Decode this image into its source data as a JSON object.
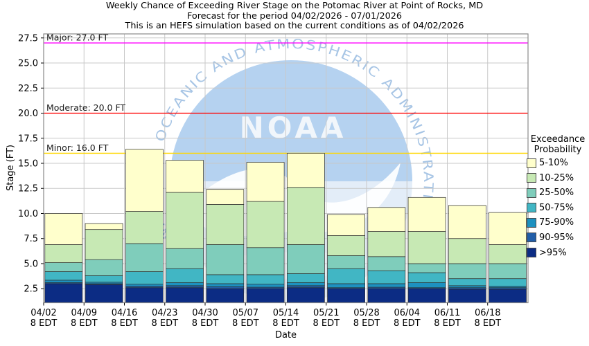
{
  "title": {
    "line1": "Weekly Chance of Exceeding River Stage on the Potomac River at Point of Rocks, MD",
    "line2": "Forecast for the period 04/02/2026 - 07/01/2026",
    "line3": "This is an HEFS simulation based on the current conditions as of 04/02/2026"
  },
  "watermark": {
    "abbrev": "NOAA",
    "circle_text": "NATIONAL OCEANIC AND ATMOSPHERIC ADMINISTRATION"
  },
  "legend": {
    "title_line1": "Exceedance",
    "title_line2": "Probability",
    "items": [
      {
        "label": "5-10%",
        "color": "#ffffcc"
      },
      {
        "label": "10-25%",
        "color": "#c7e9b4"
      },
      {
        "label": "25-50%",
        "color": "#7fcdbb"
      },
      {
        "label": "50-75%",
        "color": "#41b6c4"
      },
      {
        "label": "75-90%",
        "color": "#1d91c0"
      },
      {
        "label": "90-95%",
        "color": "#225ea8"
      },
      {
        "label": ">95%",
        "color": "#0c2c84"
      }
    ]
  },
  "thresholds": [
    {
      "name": "Major",
      "label": "Major: 27.0 FT",
      "value": 27.0,
      "color": "#ff00ff"
    },
    {
      "name": "Moderate",
      "label": "Moderate: 20.0 FT",
      "value": 20.0,
      "color": "#ff0000"
    },
    {
      "name": "Minor",
      "label": "Minor: 16.0 FT",
      "value": 16.0,
      "color": "#ffd700"
    }
  ],
  "chart_data": {
    "type": "bar",
    "stacked": true,
    "title": "Weekly Chance of Exceeding River Stage on the Potomac River at Point of Rocks, MD",
    "xlabel": "Date",
    "ylabel": "Stage (FT)",
    "ylim": [
      1.1,
      27.9
    ],
    "yticks": [
      2.5,
      5.0,
      7.5,
      10.0,
      12.5,
      15.0,
      17.5,
      20.0,
      22.5,
      25.0,
      27.5
    ],
    "grid": true,
    "legend_position": "right",
    "x_tick_time_suffix": "8 EDT",
    "categories": [
      "04/02",
      "04/09",
      "04/16",
      "04/23",
      "04/30",
      "05/07",
      "05/14",
      "05/21",
      "05/28",
      "06/04",
      "06/11",
      "06/18"
    ],
    "series_stack_order_bottom_up": [
      {
        "name": ">95%",
        "color": "#0c2c84",
        "upper_key": "p95"
      },
      {
        "name": "90-95%",
        "color": "#225ea8",
        "upper_key": "p90"
      },
      {
        "name": "75-90%",
        "color": "#1d91c0",
        "upper_key": "p75"
      },
      {
        "name": "50-75%",
        "color": "#41b6c4",
        "upper_key": "p50"
      },
      {
        "name": "25-50%",
        "color": "#7fcdbb",
        "upper_key": "p25"
      },
      {
        "name": "10-25%",
        "color": "#c7e9b4",
        "upper_key": "p10"
      },
      {
        "name": "5-10%",
        "color": "#ffffcc",
        "upper_key": "p5"
      }
    ],
    "bars": [
      {
        "date": "04/02",
        "time": "8 EDT",
        "p95": 3.0,
        "p90": 3.1,
        "p75": 3.35,
        "p50": 4.2,
        "p25": 5.1,
        "p10": 6.9,
        "p5": 10.0
      },
      {
        "date": "04/09",
        "time": "8 EDT",
        "p95": 2.9,
        "p90": 3.0,
        "p75": 3.15,
        "p50": 3.8,
        "p25": 5.4,
        "p10": 8.4,
        "p5": 9.0
      },
      {
        "date": "04/16",
        "time": "8 EDT",
        "p95": 2.6,
        "p90": 2.75,
        "p75": 2.95,
        "p50": 4.2,
        "p25": 7.0,
        "p10": 10.2,
        "p5": 16.4
      },
      {
        "date": "04/23",
        "time": "8 EDT",
        "p95": 2.6,
        "p90": 2.8,
        "p75": 3.1,
        "p50": 4.5,
        "p25": 6.5,
        "p10": 12.1,
        "p5": 15.3
      },
      {
        "date": "04/30",
        "time": "8 EDT",
        "p95": 2.5,
        "p90": 2.7,
        "p75": 3.0,
        "p50": 3.9,
        "p25": 6.9,
        "p10": 10.9,
        "p5": 12.4
      },
      {
        "date": "05/07",
        "time": "8 EDT",
        "p95": 2.5,
        "p90": 2.65,
        "p75": 2.95,
        "p50": 3.9,
        "p25": 6.6,
        "p10": 11.2,
        "p5": 15.1
      },
      {
        "date": "05/14",
        "time": "8 EDT",
        "p95": 2.6,
        "p90": 2.8,
        "p75": 3.1,
        "p50": 4.0,
        "p25": 6.9,
        "p10": 12.6,
        "p5": 16.0
      },
      {
        "date": "05/21",
        "time": "8 EDT",
        "p95": 2.5,
        "p90": 2.6,
        "p75": 3.0,
        "p50": 4.5,
        "p25": 5.8,
        "p10": 7.8,
        "p5": 9.9
      },
      {
        "date": "05/28",
        "time": "8 EDT",
        "p95": 2.5,
        "p90": 2.65,
        "p75": 3.0,
        "p50": 4.3,
        "p25": 5.7,
        "p10": 8.2,
        "p5": 10.6
      },
      {
        "date": "06/04",
        "time": "8 EDT",
        "p95": 2.5,
        "p90": 2.6,
        "p75": 3.1,
        "p50": 4.1,
        "p25": 5.0,
        "p10": 8.2,
        "p5": 11.6
      },
      {
        "date": "06/11",
        "time": "8 EDT",
        "p95": 2.45,
        "p90": 2.6,
        "p75": 2.8,
        "p50": 3.5,
        "p25": 5.0,
        "p10": 7.5,
        "p5": 10.8
      },
      {
        "date": "06/18",
        "time": "8 EDT",
        "p95": 2.45,
        "p90": 2.6,
        "p75": 2.75,
        "p50": 3.5,
        "p25": 5.0,
        "p10": 6.9,
        "p5": 10.1
      }
    ]
  }
}
